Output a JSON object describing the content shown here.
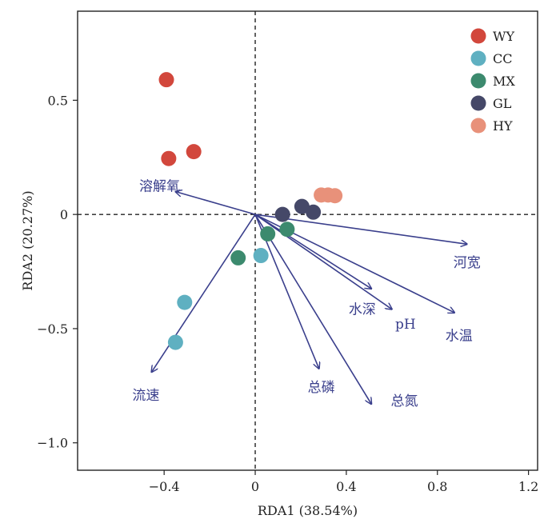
{
  "chart_data": {
    "type": "scatter",
    "xlabel": "RDA1 (38.54%)",
    "ylabel": "RDA2 (20.27%)",
    "xlim": [
      -0.78,
      1.24
    ],
    "ylim": [
      -1.12,
      0.89
    ],
    "xticks": [
      -0.4,
      0,
      0.4,
      0.8,
      1.2
    ],
    "xtick_labels": [
      "−0.4",
      "0",
      "0.4",
      "0.8",
      "1.2"
    ],
    "yticks": [
      -1.0,
      -0.5,
      0,
      0.5
    ],
    "ytick_labels": [
      "−1.0",
      "−0.5",
      "0",
      "0.5"
    ],
    "zero_lines": true,
    "legend_position": "top-right",
    "series": [
      {
        "name": "WY",
        "color": "#d2473c",
        "points": [
          [
            -0.39,
            0.59
          ],
          [
            -0.38,
            0.245
          ],
          [
            -0.27,
            0.275
          ]
        ]
      },
      {
        "name": "CC",
        "color": "#5fb0c1",
        "points": [
          [
            -0.31,
            -0.385
          ],
          [
            -0.35,
            -0.56
          ],
          [
            0.025,
            -0.18
          ]
        ]
      },
      {
        "name": "MX",
        "color": "#3c8a6e",
        "points": [
          [
            -0.075,
            -0.19
          ],
          [
            0.055,
            -0.085
          ],
          [
            0.14,
            -0.065
          ]
        ]
      },
      {
        "name": "GL",
        "color": "#454868",
        "points": [
          [
            0.12,
            0.0
          ],
          [
            0.205,
            0.035
          ],
          [
            0.255,
            0.01
          ]
        ]
      },
      {
        "name": "HY",
        "color": "#e8917a",
        "points": [
          [
            0.29,
            0.085
          ],
          [
            0.32,
            0.085
          ],
          [
            0.35,
            0.082
          ]
        ]
      }
    ],
    "arrows": [
      {
        "label": "溶解氧",
        "x": -0.35,
        "y": 0.1,
        "lx": -0.42,
        "ly": 0.125
      },
      {
        "label": "河宽",
        "x": 0.93,
        "y": -0.13,
        "lx": 0.93,
        "ly": -0.21
      },
      {
        "label": "水深",
        "x": 0.51,
        "y": -0.325,
        "lx": 0.47,
        "ly": -0.415
      },
      {
        "label": "pH",
        "x": 0.6,
        "y": -0.415,
        "lx": 0.66,
        "ly": -0.48
      },
      {
        "label": "水温",
        "x": 0.875,
        "y": -0.43,
        "lx": 0.895,
        "ly": -0.53
      },
      {
        "label": "总磷",
        "x": 0.28,
        "y": -0.675,
        "lx": 0.29,
        "ly": -0.755
      },
      {
        "label": "总氮",
        "x": 0.51,
        "y": -0.83,
        "lx": 0.655,
        "ly": -0.815
      },
      {
        "label": "流速",
        "x": -0.455,
        "y": -0.69,
        "lx": -0.48,
        "ly": -0.79
      }
    ]
  }
}
